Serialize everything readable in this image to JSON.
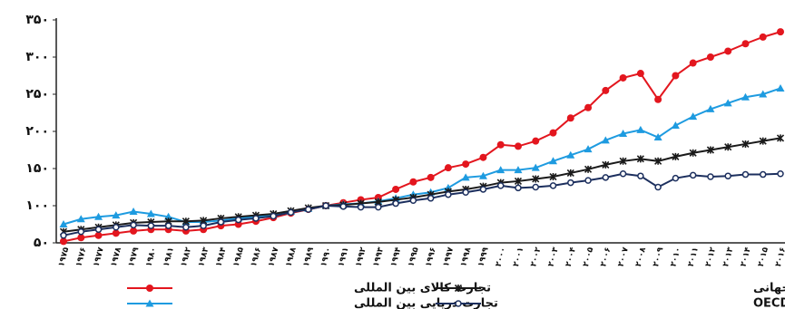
{
  "chart_data": {
    "type": "line",
    "categories": [
      "۱۹۷۵",
      "۱۹۷۶",
      "۱۹۷۷",
      "۱۹۷۸",
      "۱۹۷۹",
      "۱۹۸۰",
      "۱۹۸۱",
      "۱۹۸۲",
      "۱۹۸۳",
      "۱۹۸۴",
      "۱۹۸۵",
      "۱۹۸۶",
      "۱۹۸۷",
      "۱۹۸۸",
      "۱۹۸۹",
      "۱۹۹۰",
      "۱۹۹۱",
      "۱۹۹۲",
      "۱۹۹۳",
      "۱۹۹۴",
      "۱۹۹۵",
      "۱۹۹۶",
      "۱۹۹۷",
      "۱۹۹۸",
      "۱۹۹۹",
      "۲۰۰۰",
      "۲۰۰۱",
      "۲۰۰۲",
      "۲۰۰۳",
      "۲۰۰۴",
      "۲۰۰۵",
      "۲۰۰۶",
      "۲۰۰۷",
      "۲۰۰۸",
      "۲۰۰۹",
      "۲۰۱۰",
      "۲۰۱۱",
      "۲۰۱۲",
      "۲۰۱۳",
      "۲۰۱۴",
      "۲۰۱۵",
      "۲۰۱۶"
    ],
    "series": [
      {
        "name": "تجارت کالای بین المللی",
        "color": "#e3161e",
        "marker": "circle",
        "values": [
          52,
          57,
          60,
          63,
          66,
          68,
          68,
          66,
          68,
          73,
          75,
          79,
          84,
          90,
          95,
          100,
          104,
          108,
          111,
          122,
          132,
          138,
          151,
          156,
          165,
          182,
          180,
          187,
          198,
          218,
          232,
          255,
          272,
          278,
          243,
          275,
          292,
          300,
          308,
          318,
          327,
          334
        ]
      },
      {
        "name": "تجارت دریایی بین المللی",
        "color": "#1e9be0",
        "marker": "triangle",
        "values": [
          75,
          82,
          85,
          87,
          92,
          89,
          85,
          78,
          78,
          80,
          83,
          85,
          88,
          92,
          96,
          100,
          102,
          103,
          106,
          110,
          115,
          118,
          124,
          138,
          140,
          148,
          148,
          151,
          160,
          168,
          176,
          188,
          197,
          202,
          192,
          208,
          220,
          230,
          238,
          246,
          250,
          258
        ]
      },
      {
        "name": "تولید ناخالص جهانی",
        "color": "#1a1a1a",
        "marker": "x",
        "values": [
          65,
          68,
          71,
          74,
          77,
          78,
          79,
          79,
          80,
          83,
          85,
          87,
          89,
          93,
          97,
          100,
          101,
          103,
          105,
          108,
          111,
          115,
          119,
          122,
          126,
          131,
          133,
          136,
          139,
          144,
          149,
          155,
          160,
          163,
          160,
          166,
          171,
          175,
          179,
          183,
          187,
          191
        ]
      },
      {
        "name": "شاخص تولیدات صنعتی کشورهای OECD",
        "color": "#1c2f5e",
        "marker": "open-circle",
        "values": [
          60,
          65,
          68,
          71,
          74,
          73,
          73,
          71,
          73,
          78,
          81,
          83,
          86,
          91,
          95,
          100,
          99,
          98,
          98,
          103,
          107,
          110,
          115,
          118,
          122,
          127,
          124,
          125,
          127,
          131,
          134,
          138,
          143,
          140,
          125,
          137,
          141,
          139,
          140,
          142,
          142,
          143
        ]
      }
    ],
    "ylim": [
      50,
      350
    ],
    "yticks": [
      {
        "value": 50,
        "label": "۵۰"
      },
      {
        "value": 100,
        "label": "۱۰۰"
      },
      {
        "value": 150,
        "label": "۱۵۰"
      },
      {
        "value": 200,
        "label": "۲۰۰"
      },
      {
        "value": 250,
        "label": "۲۵۰"
      },
      {
        "value": 300,
        "label": "۳۰۰"
      },
      {
        "value": 350,
        "label": "۳۵۰"
      }
    ],
    "grid": false
  }
}
